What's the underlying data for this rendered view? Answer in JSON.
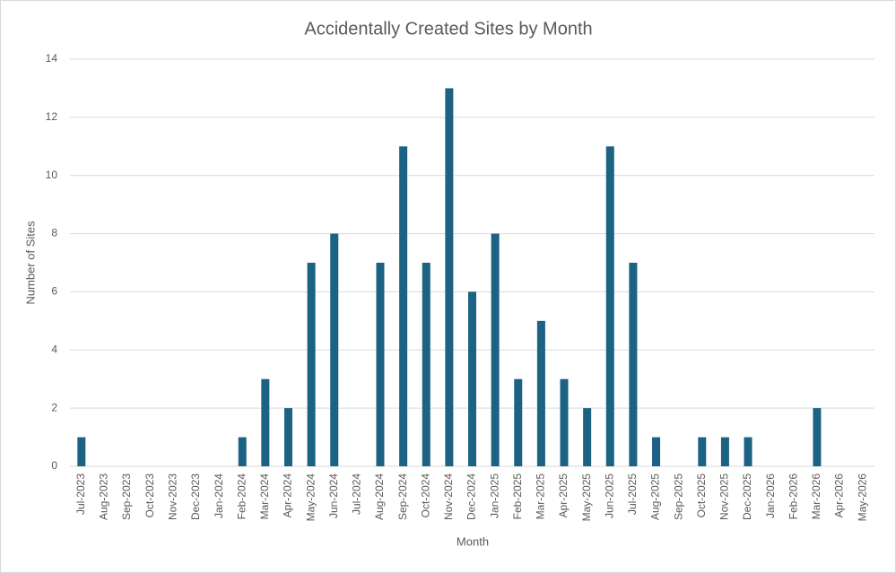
{
  "chart_data": {
    "type": "bar",
    "title": "Accidentally Created Sites by Month",
    "x_label": "Month",
    "y_label": "Number of Sites",
    "categories": [
      "Jul-2023",
      "Aug-2023",
      "Sep-2023",
      "Oct-2023",
      "Nov-2023",
      "Dec-2023",
      "Jan-2024",
      "Feb-2024",
      "Mar-2024",
      "Apr-2024",
      "May-2024",
      "Jun-2024",
      "Jul-2024",
      "Aug-2024",
      "Sep-2024",
      "Oct-2024",
      "Nov-2024",
      "Dec-2024",
      "Jan-2025",
      "Feb-2025",
      "Mar-2025",
      "Apr-2025",
      "May-2025",
      "Jun-2025",
      "Jul-2025",
      "Aug-2025",
      "Sep-2025",
      "Oct-2025",
      "Nov-2025",
      "Dec-2025",
      "Jan-2026",
      "Feb-2026",
      "Mar-2026",
      "Apr-2026",
      "May-2026"
    ],
    "values": [
      1,
      null,
      null,
      null,
      null,
      null,
      null,
      1,
      3,
      2,
      7,
      8,
      null,
      7,
      11,
      7,
      13,
      6,
      8,
      3,
      5,
      3,
      2,
      11,
      7,
      1,
      null,
      1,
      1,
      1,
      null,
      null,
      2,
      null,
      null
    ],
    "color": "#1b6283",
    "ylim": [
      0,
      14
    ],
    "yticks": [
      0,
      2,
      4,
      6,
      8,
      10,
      12,
      14
    ],
    "grid": true
  }
}
